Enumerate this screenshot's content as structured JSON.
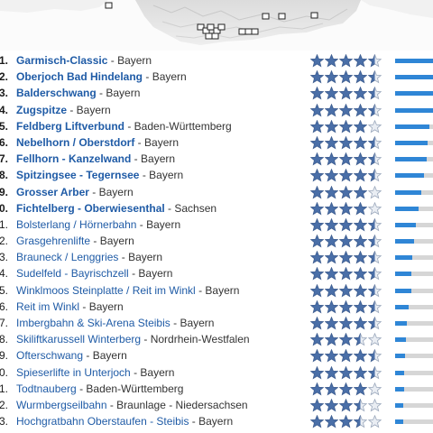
{
  "colors": {
    "resort_link": "#1f5ba6",
    "bar_fill": "#2f86d6",
    "bar_track": "#d6d6d6",
    "star_fill": "#4a6fa8"
  },
  "rating_max": 5,
  "resorts": [
    {
      "rank": "1.",
      "name": "Garmisch-Classic",
      "sep": " - ",
      "region": "Bayern",
      "rating": 4.5,
      "share": 1.0
    },
    {
      "rank": "2.",
      "name": "Oberjoch Bad Hindelang",
      "sep": " - ",
      "region": "Bayern",
      "rating": 4.5,
      "share": 1.0
    },
    {
      "rank": "3.",
      "name": "Balderschwang",
      "sep": " - ",
      "region": "Bayern",
      "rating": 4.5,
      "share": 1.0
    },
    {
      "rank": "4.",
      "name": "Zugspitze",
      "sep": " - ",
      "region": "Bayern",
      "rating": 4.5,
      "share": 1.0
    },
    {
      "rank": "5.",
      "name": "Feldberg Liftverbund",
      "sep": " - ",
      "region": "Baden-Württemberg",
      "rating": 4.0,
      "share": 0.9
    },
    {
      "rank": "6.",
      "name": "Nebelhorn / Oberstdorf",
      "sep": " - ",
      "region": "Bayern",
      "rating": 4.5,
      "share": 0.86
    },
    {
      "rank": "7.",
      "name": "Fellhorn - Kanzelwand",
      "sep": " - ",
      "region": "Bayern",
      "rating": 4.5,
      "share": 0.83
    },
    {
      "rank": "8.",
      "name": "Spitzingsee - Tegernsee",
      "sep": " - ",
      "region": "Bayern",
      "rating": 4.5,
      "share": 0.76
    },
    {
      "rank": "9.",
      "name": "Grosser Arber",
      "sep": " - ",
      "region": "Bayern",
      "rating": 4.0,
      "share": 0.69
    },
    {
      "rank": "0.",
      "name": "Fichtelberg - Oberwiesenthal",
      "sep": " - ",
      "region": "Sachsen",
      "rating": 4.0,
      "share": 0.62
    },
    {
      "rank": "1.",
      "name": "Bolsterlang / Hörnerbahn",
      "sep": " - ",
      "region": "Bayern",
      "rating": 4.5,
      "share": 0.55
    },
    {
      "rank": "2.",
      "name": "Grasgehrenlifte",
      "sep": " - ",
      "region": "Bayern",
      "rating": 4.5,
      "share": 0.5
    },
    {
      "rank": "3.",
      "name": "Brauneck / Lenggries",
      "sep": " - ",
      "region": "Bayern",
      "rating": 4.5,
      "share": 0.45
    },
    {
      "rank": "4.",
      "name": "Sudelfeld - Bayrischzell",
      "sep": " - ",
      "region": "Bayern",
      "rating": 4.5,
      "share": 0.43
    },
    {
      "rank": "5.",
      "name": "Winklmoos Steinplatte / Reit im Winkl",
      "sep": " - ",
      "region": "Bayern",
      "rating": 4.5,
      "share": 0.43
    },
    {
      "rank": "6.",
      "name": "Reit im Winkl",
      "sep": " - ",
      "region": "Bayern",
      "rating": 4.5,
      "share": 0.36
    },
    {
      "rank": "7.",
      "name": "Imbergbahn & Ski-Arena Steibis",
      "sep": " - ",
      "region": "Bayern",
      "rating": 4.5,
      "share": 0.31
    },
    {
      "rank": "8.",
      "name": "Skiliftkarussell Winterberg",
      "sep": " - ",
      "region": "Nordrhein-Westfalen",
      "rating": 3.5,
      "share": 0.29
    },
    {
      "rank": "9.",
      "name": "Ofterschwang",
      "sep": " - ",
      "region": "Bayern",
      "rating": 4.5,
      "share": 0.26
    },
    {
      "rank": "0.",
      "name": "Spieserlifte in Unterjoch",
      "sep": " - ",
      "region": "Bayern",
      "rating": 4.5,
      "share": 0.24
    },
    {
      "rank": "1.",
      "name": "Todtnauberg",
      "sep": " - ",
      "region": "Baden-Württemberg",
      "rating": 4.0,
      "share": 0.24
    },
    {
      "rank": "2.",
      "name": "Wurmbergseilbahn",
      "sep": " - ",
      "region": "Braunlage - Niedersachsen",
      "rating": 3.5,
      "share": 0.21
    },
    {
      "rank": "3.",
      "name": "Hochgratbahn Oberstaufen - Steibis",
      "sep": " - ",
      "region": "Bayern",
      "rating": 3.5,
      "share": 0.21
    }
  ]
}
